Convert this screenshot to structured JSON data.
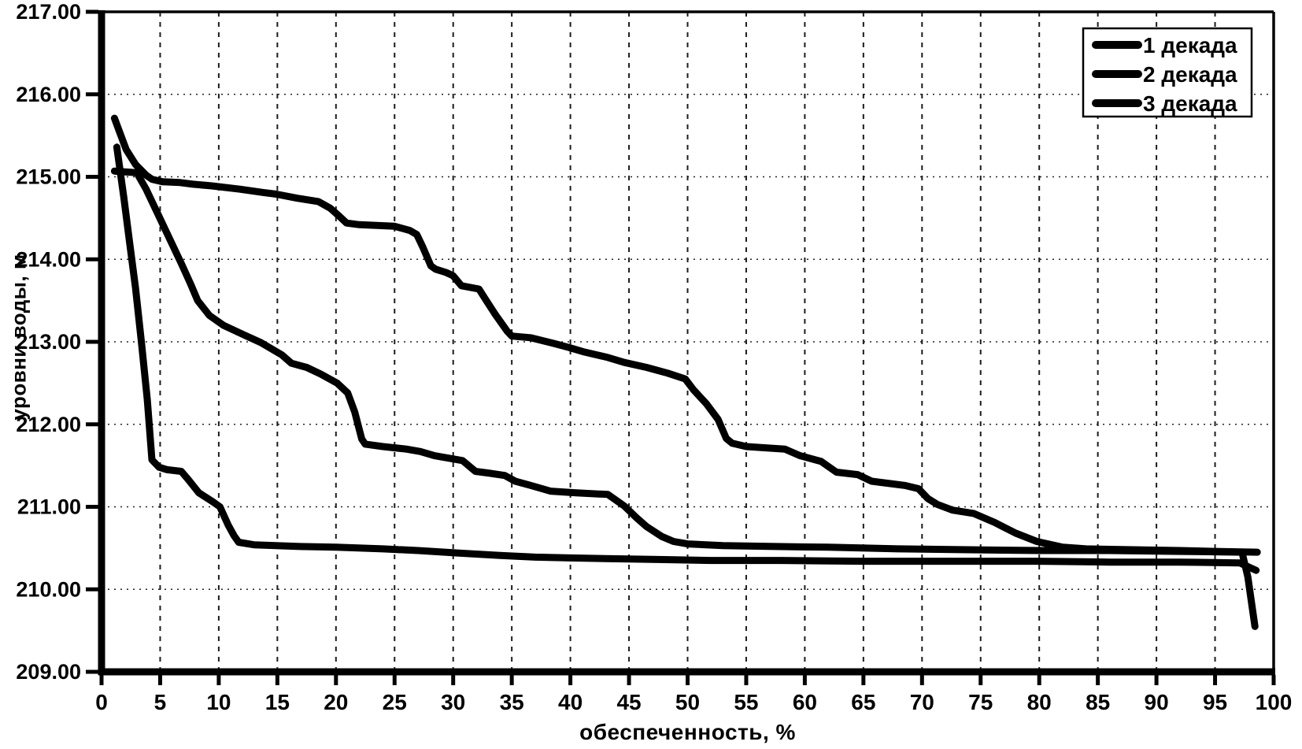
{
  "chart_data": {
    "type": "line",
    "title": "",
    "xlabel": "обеспеченность, %",
    "ylabel": "уровни воды, м",
    "xlim": [
      0,
      100
    ],
    "ylim": [
      209,
      217
    ],
    "grid": {
      "vertical": "dashed every 5%",
      "horizontal": "dotted every 1.00 m"
    },
    "legend_position": "top-right",
    "line_color": "#000000",
    "x_ticks": [
      0,
      5,
      10,
      15,
      20,
      25,
      30,
      35,
      40,
      45,
      50,
      55,
      60,
      65,
      70,
      75,
      80,
      85,
      90,
      95,
      100
    ],
    "x_tick_labels": [
      "0",
      "5",
      "10",
      "15",
      "20",
      "25",
      "30",
      "35",
      "40",
      "45",
      "50",
      "55",
      "60",
      "65",
      "70",
      "75",
      "80",
      "85",
      "90",
      "95",
      "100"
    ],
    "y_ticks": [
      209,
      210,
      211,
      212,
      213,
      214,
      215,
      216,
      217
    ],
    "y_tick_labels": [
      "209.00",
      "210.00",
      "211.00",
      "212.00",
      "213.00",
      "214.00",
      "215.00",
      "216.00",
      "217.00"
    ],
    "series": [
      {
        "name": "1 декада",
        "color": "#000000",
        "points": [
          [
            1.1,
            215.71
          ],
          [
            1.6,
            215.52
          ],
          [
            2.1,
            215.33
          ],
          [
            2.9,
            215.15
          ],
          [
            3.8,
            215.02
          ],
          [
            4.3,
            214.97
          ],
          [
            5.2,
            214.94
          ],
          [
            6.7,
            214.93
          ],
          [
            7.8,
            214.91
          ],
          [
            9.4,
            214.89
          ],
          [
            11.8,
            214.85
          ],
          [
            13.8,
            214.81
          ],
          [
            14.9,
            214.79
          ],
          [
            16.7,
            214.74
          ],
          [
            18.5,
            214.7
          ],
          [
            19.5,
            214.62
          ],
          [
            20.3,
            214.52
          ],
          [
            20.9,
            214.44
          ],
          [
            22,
            214.42
          ],
          [
            25,
            214.4
          ],
          [
            26.3,
            214.35
          ],
          [
            26.9,
            214.3
          ],
          [
            27.4,
            214.15
          ],
          [
            28.1,
            213.92
          ],
          [
            28.5,
            213.88
          ],
          [
            29.4,
            213.84
          ],
          [
            30,
            213.8
          ],
          [
            30.7,
            213.68
          ],
          [
            32.2,
            213.64
          ],
          [
            32.6,
            213.55
          ],
          [
            33.6,
            213.33
          ],
          [
            34.6,
            213.13
          ],
          [
            35,
            213.07
          ],
          [
            36.6,
            213.05
          ],
          [
            38.6,
            212.98
          ],
          [
            39.9,
            212.93
          ],
          [
            41.1,
            212.88
          ],
          [
            43.2,
            212.81
          ],
          [
            44.6,
            212.75
          ],
          [
            46.5,
            212.69
          ],
          [
            48.3,
            212.62
          ],
          [
            49.8,
            212.55
          ],
          [
            50.5,
            212.42
          ],
          [
            51.6,
            212.25
          ],
          [
            52.6,
            212.06
          ],
          [
            53.3,
            211.83
          ],
          [
            53.8,
            211.77
          ],
          [
            55,
            211.73
          ],
          [
            58.3,
            211.7
          ],
          [
            59.6,
            211.62
          ],
          [
            61.4,
            211.55
          ],
          [
            62.7,
            211.42
          ],
          [
            64.5,
            211.39
          ],
          [
            65.7,
            211.31
          ],
          [
            68.5,
            211.26
          ],
          [
            69.7,
            211.22
          ],
          [
            70.5,
            211.1
          ],
          [
            71.3,
            211.03
          ],
          [
            72.6,
            210.96
          ],
          [
            74.4,
            210.92
          ],
          [
            76.2,
            210.81
          ],
          [
            78,
            210.68
          ],
          [
            79.8,
            210.58
          ],
          [
            82,
            210.51
          ],
          [
            84,
            210.49
          ],
          [
            88,
            210.48
          ],
          [
            92,
            210.47
          ],
          [
            95,
            210.46
          ],
          [
            98.6,
            210.45
          ]
        ]
      },
      {
        "name": "2 декада",
        "color": "#000000",
        "points": [
          [
            1.3,
            215.36
          ],
          [
            1.9,
            214.75
          ],
          [
            2.4,
            214.2
          ],
          [
            2.9,
            213.65
          ],
          [
            3.4,
            213.0
          ],
          [
            3.9,
            212.3
          ],
          [
            4.3,
            211.57
          ],
          [
            4.9,
            211.48
          ],
          [
            5.6,
            211.45
          ],
          [
            6.8,
            211.43
          ],
          [
            7.4,
            211.33
          ],
          [
            8.3,
            211.17
          ],
          [
            9.5,
            211.06
          ],
          [
            10.1,
            211.0
          ],
          [
            10.8,
            210.78
          ],
          [
            11.3,
            210.65
          ],
          [
            11.7,
            210.57
          ],
          [
            13,
            210.54
          ],
          [
            16.7,
            210.52
          ],
          [
            20,
            210.51
          ],
          [
            24,
            210.49
          ],
          [
            27,
            210.47
          ],
          [
            30.5,
            210.44
          ],
          [
            34,
            210.41
          ],
          [
            37,
            210.39
          ],
          [
            40,
            210.38
          ],
          [
            44,
            210.37
          ],
          [
            48,
            210.36
          ],
          [
            52,
            210.35
          ],
          [
            58,
            210.35
          ],
          [
            65,
            210.34
          ],
          [
            72,
            210.34
          ],
          [
            80,
            210.34
          ],
          [
            86,
            210.33
          ],
          [
            92,
            210.33
          ],
          [
            97.1,
            210.32
          ],
          [
            98.5,
            210.23
          ]
        ]
      },
      {
        "name": "3 декада",
        "color": "#000000",
        "points": [
          [
            1.1,
            215.07
          ],
          [
            2.0,
            215.06
          ],
          [
            3.0,
            215.05
          ],
          [
            3.8,
            214.85
          ],
          [
            4.8,
            214.55
          ],
          [
            5.8,
            214.25
          ],
          [
            6.8,
            213.95
          ],
          [
            7.6,
            213.7
          ],
          [
            8.2,
            213.5
          ],
          [
            9.2,
            213.32
          ],
          [
            10.4,
            213.2
          ],
          [
            12.2,
            213.08
          ],
          [
            13.6,
            212.99
          ],
          [
            15.4,
            212.84
          ],
          [
            16.2,
            212.74
          ],
          [
            17.5,
            212.69
          ],
          [
            18.7,
            212.61
          ],
          [
            20.1,
            212.5
          ],
          [
            21,
            212.38
          ],
          [
            21.6,
            212.15
          ],
          [
            22.2,
            211.82
          ],
          [
            22.5,
            211.76
          ],
          [
            24,
            211.73
          ],
          [
            26,
            211.7
          ],
          [
            27.2,
            211.67
          ],
          [
            28.4,
            211.62
          ],
          [
            29.6,
            211.59
          ],
          [
            30.8,
            211.56
          ],
          [
            31.9,
            211.43
          ],
          [
            33,
            211.41
          ],
          [
            34.4,
            211.38
          ],
          [
            35.3,
            211.31
          ],
          [
            36.6,
            211.26
          ],
          [
            38.3,
            211.19
          ],
          [
            40.5,
            211.17
          ],
          [
            43.2,
            211.15
          ],
          [
            44.6,
            211.01
          ],
          [
            45.7,
            210.86
          ],
          [
            46.5,
            210.76
          ],
          [
            47.8,
            210.64
          ],
          [
            48.8,
            210.58
          ],
          [
            50,
            210.55
          ],
          [
            53,
            210.53
          ],
          [
            57,
            210.52
          ],
          [
            62,
            210.51
          ],
          [
            68,
            210.49
          ],
          [
            74,
            210.48
          ],
          [
            80,
            210.47
          ],
          [
            86,
            210.47
          ],
          [
            92,
            210.46
          ],
          [
            97.3,
            210.45
          ],
          [
            97.8,
            210.15
          ],
          [
            98.4,
            209.55
          ]
        ]
      }
    ]
  }
}
